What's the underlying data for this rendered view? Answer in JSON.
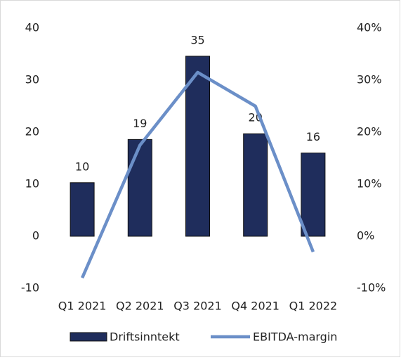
{
  "chart_data": {
    "type": "bar",
    "categories": [
      "Q1 2021",
      "Q2 2021",
      "Q3 2021",
      "Q4 2021",
      "Q1 2022"
    ],
    "series": [
      {
        "name": "Driftsinntekt",
        "type": "bar",
        "color": "#1f2d5c",
        "values": [
          10.3,
          18.6,
          34.6,
          19.7,
          16.0
        ],
        "value_labels": [
          "10",
          "19",
          "35",
          "20",
          "16"
        ]
      },
      {
        "name": "EBITDA-margin",
        "type": "line",
        "axis": "y2",
        "color": "#6b8fc8",
        "values": [
          -8,
          17.5,
          31.5,
          25,
          -3
        ]
      }
    ],
    "ylim": [
      -10,
      40
    ],
    "yticks": [
      -10,
      0,
      10,
      20,
      30,
      40
    ],
    "y2lim": [
      -10,
      40
    ],
    "y2ticks": [
      {
        "value": -10,
        "label": "-10%"
      },
      {
        "value": 0,
        "label": "0%"
      },
      {
        "value": 10,
        "label": "10%"
      },
      {
        "value": 20,
        "label": "20%"
      },
      {
        "value": 30,
        "label": "30%"
      },
      {
        "value": 40,
        "label": "40%"
      }
    ],
    "grid": false,
    "legend": "bottom"
  }
}
